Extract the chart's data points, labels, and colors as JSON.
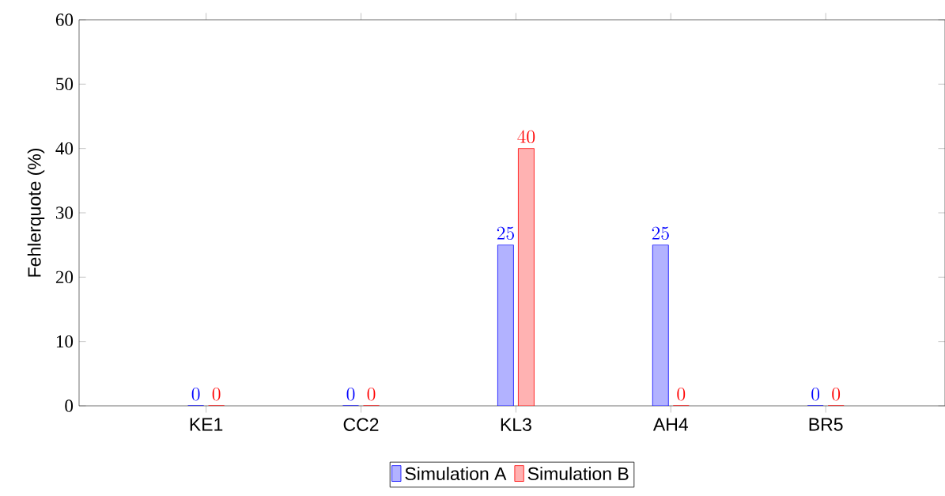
{
  "chart_data": {
    "type": "bar",
    "ylabel": "Fehlerquote (%)",
    "categories": [
      "KE1",
      "CC2",
      "KL3",
      "AH4",
      "BR5"
    ],
    "series": [
      {
        "name": "Simulation A",
        "color": "#0000ff",
        "values": [
          0,
          0,
          25,
          25,
          0
        ]
      },
      {
        "name": "Simulation B",
        "color": "#ff0000",
        "values": [
          0,
          0,
          40,
          0,
          0
        ]
      }
    ],
    "ylim": [
      0,
      60
    ],
    "yticks": [
      0,
      10,
      20,
      30,
      40,
      50,
      60
    ],
    "data_labels": true,
    "legend": "bottom",
    "grid": false
  }
}
